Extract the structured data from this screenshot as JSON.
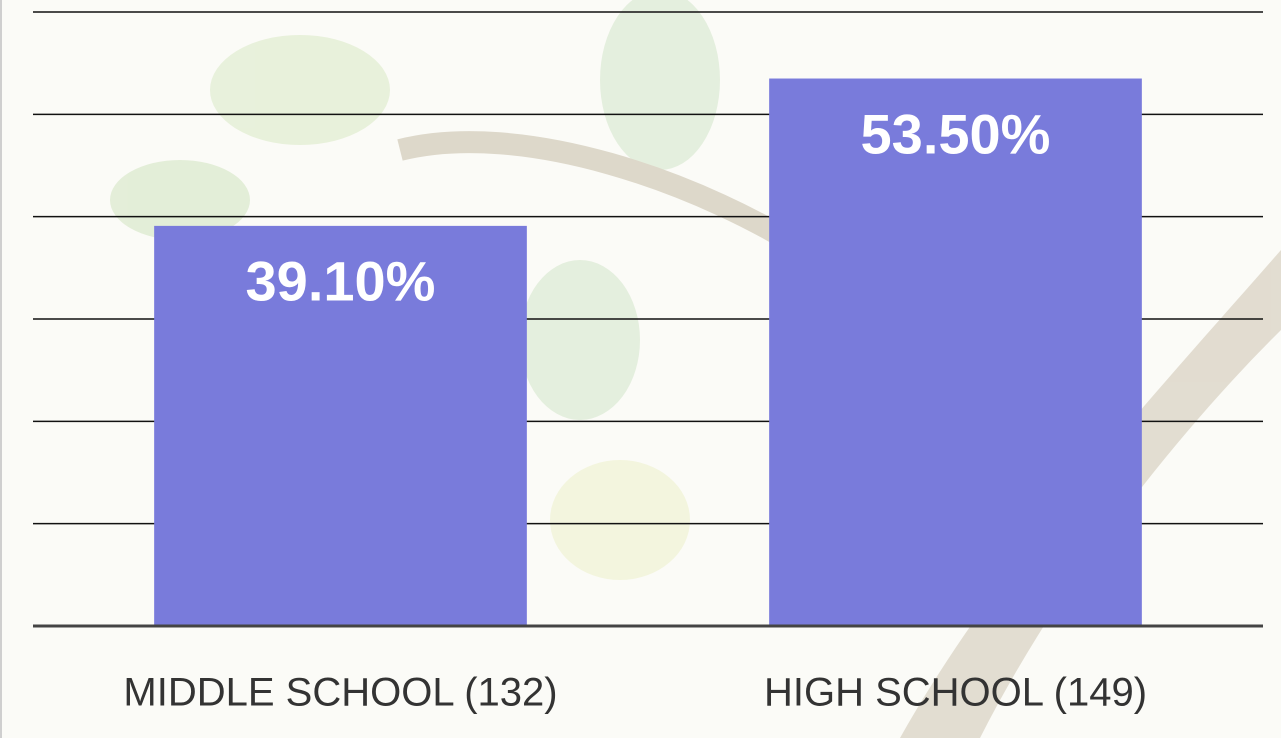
{
  "chart_data": {
    "type": "bar",
    "categories": [
      "MIDDLE SCHOOL (132)",
      "HIGH SCHOOL (149)"
    ],
    "values": [
      39.1,
      53.5
    ],
    "value_labels": [
      "39.10%",
      "53.50%"
    ],
    "color": "#797bdb",
    "ylim": [
      0,
      60
    ],
    "yticks": [
      0,
      10,
      20,
      30,
      40,
      50,
      60
    ],
    "grid": true
  }
}
